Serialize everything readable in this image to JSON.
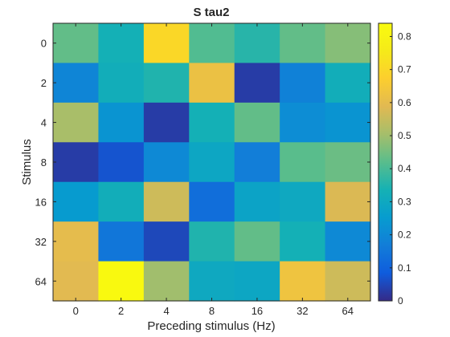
{
  "chart_data": {
    "type": "heatmap",
    "title": "S tau2",
    "xlabel": "Preceding stimulus (Hz)",
    "ylabel": "Stimulus",
    "x_categories": [
      "0",
      "2",
      "4",
      "8",
      "16",
      "32",
      "64"
    ],
    "y_categories": [
      "0",
      "2",
      "4",
      "8",
      "16",
      "32",
      "64"
    ],
    "values": [
      [
        0.43,
        0.33,
        0.7,
        0.41,
        0.36,
        0.43,
        0.47
      ],
      [
        0.19,
        0.32,
        0.35,
        0.62,
        0.03,
        0.18,
        0.32
      ],
      [
        0.51,
        0.23,
        0.03,
        0.33,
        0.43,
        0.21,
        0.23
      ],
      [
        0.03,
        0.07,
        0.2,
        0.29,
        0.17,
        0.42,
        0.44
      ],
      [
        0.25,
        0.32,
        0.56,
        0.13,
        0.28,
        0.3,
        0.58
      ],
      [
        0.6,
        0.15,
        0.05,
        0.35,
        0.43,
        0.33,
        0.2
      ],
      [
        0.59,
        0.83,
        0.5,
        0.3,
        0.29,
        0.63,
        0.56
      ]
    ],
    "colorbar": {
      "range": [
        0,
        0.84
      ],
      "ticks": [
        "0",
        "0.1",
        "0.2",
        "0.3",
        "0.4",
        "0.5",
        "0.6",
        "0.7",
        "0.8"
      ],
      "colormap": "parula"
    }
  }
}
